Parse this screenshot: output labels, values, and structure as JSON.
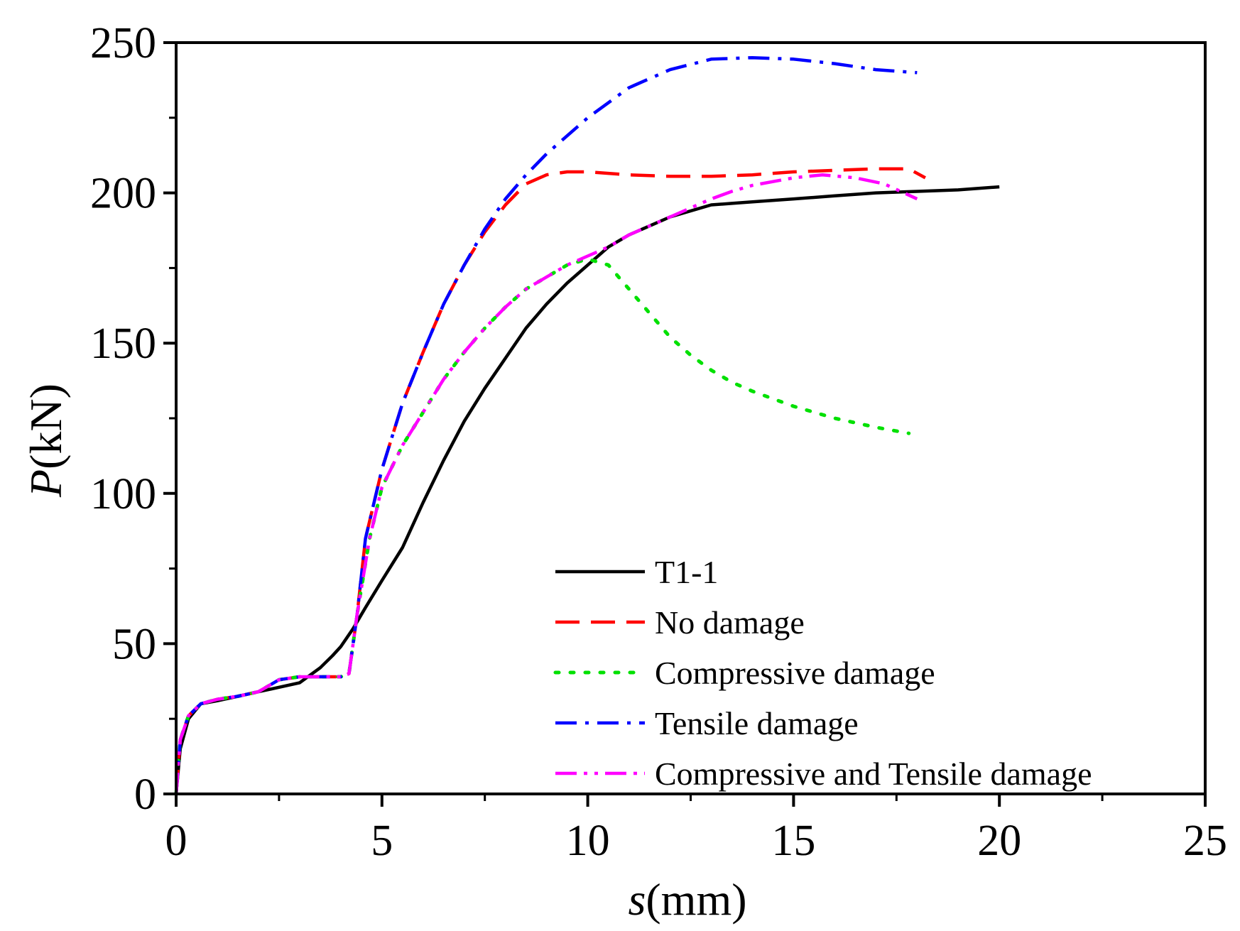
{
  "chart_data": {
    "type": "line",
    "title": "",
    "xlabel_italic": "s",
    "xlabel_unit": "(mm)",
    "ylabel_italic": "P",
    "ylabel_unit": "(kN)",
    "xlim": [
      0,
      25
    ],
    "ylim": [
      0,
      250
    ],
    "xticks": [
      0,
      5,
      10,
      15,
      20,
      25
    ],
    "yticks": [
      0,
      50,
      100,
      150,
      200,
      250
    ],
    "x_tick_labels": [
      "0",
      "5",
      "10",
      "15",
      "20",
      "25"
    ],
    "y_tick_labels": [
      "0",
      "50",
      "100",
      "150",
      "200",
      "250"
    ],
    "grid": false,
    "legend_position": "bottom-right",
    "series": [
      {
        "name": "T1-1",
        "color": "#000000",
        "style": "solid",
        "points": [
          [
            0,
            0
          ],
          [
            0.1,
            15
          ],
          [
            0.3,
            25
          ],
          [
            0.6,
            30
          ],
          [
            1,
            31
          ],
          [
            1.5,
            32.5
          ],
          [
            2,
            34
          ],
          [
            2.5,
            35.5
          ],
          [
            3,
            37
          ],
          [
            3.5,
            42
          ],
          [
            3.8,
            46
          ],
          [
            4,
            49
          ],
          [
            4.3,
            55
          ],
          [
            4.6,
            62
          ],
          [
            5,
            71
          ],
          [
            5.5,
            82
          ],
          [
            6,
            97
          ],
          [
            6.5,
            111
          ],
          [
            7,
            124
          ],
          [
            7.5,
            135
          ],
          [
            8,
            145
          ],
          [
            8.5,
            155
          ],
          [
            9,
            163
          ],
          [
            9.5,
            170
          ],
          [
            10,
            176
          ],
          [
            10.5,
            182
          ],
          [
            11,
            186
          ],
          [
            11.5,
            189
          ],
          [
            12,
            192
          ],
          [
            12.5,
            194
          ],
          [
            13,
            196
          ],
          [
            13.5,
            196.5
          ],
          [
            14,
            197
          ],
          [
            15,
            198
          ],
          [
            16,
            199
          ],
          [
            17,
            200
          ],
          [
            18,
            200.5
          ],
          [
            19,
            201
          ],
          [
            20,
            202
          ]
        ]
      },
      {
        "name": "No damage",
        "color": "#ff0000",
        "style": "dashed",
        "points": [
          [
            0,
            0
          ],
          [
            0.1,
            18
          ],
          [
            0.3,
            26
          ],
          [
            0.6,
            30
          ],
          [
            1,
            31.5
          ],
          [
            1.5,
            32.5
          ],
          [
            2,
            34
          ],
          [
            2.5,
            38
          ],
          [
            3,
            39
          ],
          [
            3.5,
            39
          ],
          [
            4,
            39
          ],
          [
            4.2,
            40
          ],
          [
            4.4,
            60
          ],
          [
            4.6,
            85
          ],
          [
            5,
            108
          ],
          [
            5.5,
            130
          ],
          [
            6,
            147
          ],
          [
            6.5,
            163
          ],
          [
            7,
            176
          ],
          [
            7.5,
            187
          ],
          [
            8,
            196
          ],
          [
            8.5,
            203
          ],
          [
            9,
            206
          ],
          [
            9.5,
            207
          ],
          [
            10,
            207
          ],
          [
            11,
            206
          ],
          [
            12,
            205.5
          ],
          [
            13,
            205.5
          ],
          [
            14,
            206
          ],
          [
            15,
            207
          ],
          [
            16,
            207.5
          ],
          [
            17,
            208
          ],
          [
            17.8,
            208
          ],
          [
            18.2,
            205
          ]
        ]
      },
      {
        "name": "Compressive damage",
        "color": "#00e000",
        "style": "dotted",
        "points": [
          [
            0,
            0
          ],
          [
            0.1,
            18
          ],
          [
            0.3,
            26
          ],
          [
            0.6,
            30
          ],
          [
            1,
            31.5
          ],
          [
            1.5,
            32.5
          ],
          [
            2,
            34
          ],
          [
            2.5,
            38
          ],
          [
            3,
            39
          ],
          [
            3.5,
            39
          ],
          [
            4,
            39
          ],
          [
            4.2,
            40
          ],
          [
            4.4,
            60
          ],
          [
            4.7,
            85
          ],
          [
            5,
            102
          ],
          [
            5.5,
            116
          ],
          [
            6,
            127
          ],
          [
            6.5,
            138
          ],
          [
            7,
            147
          ],
          [
            7.5,
            155
          ],
          [
            8,
            162
          ],
          [
            8.5,
            168
          ],
          [
            9,
            172
          ],
          [
            9.5,
            176
          ],
          [
            10,
            178
          ],
          [
            10.5,
            176
          ],
          [
            11,
            168
          ],
          [
            11.5,
            160
          ],
          [
            12,
            152
          ],
          [
            12.5,
            146
          ],
          [
            13,
            141
          ],
          [
            13.5,
            137
          ],
          [
            14,
            134
          ],
          [
            15,
            129
          ],
          [
            16,
            125
          ],
          [
            17,
            122
          ],
          [
            17.8,
            120
          ]
        ]
      },
      {
        "name": "Tensile damage",
        "color": "#0000ff",
        "style": "dashdot",
        "points": [
          [
            0,
            0
          ],
          [
            0.1,
            18
          ],
          [
            0.3,
            26
          ],
          [
            0.6,
            30
          ],
          [
            1,
            31.5
          ],
          [
            1.5,
            32.5
          ],
          [
            2,
            34
          ],
          [
            2.5,
            38
          ],
          [
            3,
            39
          ],
          [
            3.5,
            39
          ],
          [
            4,
            39
          ],
          [
            4.2,
            40
          ],
          [
            4.4,
            60
          ],
          [
            4.6,
            85
          ],
          [
            5,
            108
          ],
          [
            5.5,
            130
          ],
          [
            6,
            147
          ],
          [
            6.5,
            163
          ],
          [
            7,
            176
          ],
          [
            7.5,
            188
          ],
          [
            8,
            198
          ],
          [
            8.5,
            206
          ],
          [
            9,
            213
          ],
          [
            9.5,
            219
          ],
          [
            10,
            225
          ],
          [
            11,
            235
          ],
          [
            12,
            241
          ],
          [
            13,
            244.5
          ],
          [
            14,
            245
          ],
          [
            15,
            244.5
          ],
          [
            16,
            243
          ],
          [
            17,
            241
          ],
          [
            18,
            240
          ]
        ]
      },
      {
        "name": "Compressive and Tensile damage",
        "color": "#ff00ff",
        "style": "dashdotdot",
        "points": [
          [
            0,
            0
          ],
          [
            0.1,
            18
          ],
          [
            0.3,
            26
          ],
          [
            0.6,
            30
          ],
          [
            1,
            31.5
          ],
          [
            1.5,
            32.5
          ],
          [
            2,
            34
          ],
          [
            2.5,
            38
          ],
          [
            3,
            39
          ],
          [
            3.5,
            39
          ],
          [
            4,
            39
          ],
          [
            4.2,
            40
          ],
          [
            4.4,
            60
          ],
          [
            4.7,
            85
          ],
          [
            5,
            102
          ],
          [
            5.5,
            116
          ],
          [
            6,
            127
          ],
          [
            6.5,
            138
          ],
          [
            7,
            147
          ],
          [
            7.5,
            155
          ],
          [
            8,
            162
          ],
          [
            8.5,
            168
          ],
          [
            9,
            172
          ],
          [
            9.5,
            176
          ],
          [
            10,
            179
          ],
          [
            10.5,
            182
          ],
          [
            11,
            186
          ],
          [
            11.5,
            189
          ],
          [
            12,
            192
          ],
          [
            12.5,
            195
          ],
          [
            13,
            198
          ],
          [
            13.5,
            200.5
          ],
          [
            14,
            202.5
          ],
          [
            15,
            205
          ],
          [
            15.7,
            206
          ],
          [
            16.5,
            205
          ],
          [
            17.2,
            203
          ],
          [
            18,
            198
          ]
        ]
      }
    ]
  }
}
